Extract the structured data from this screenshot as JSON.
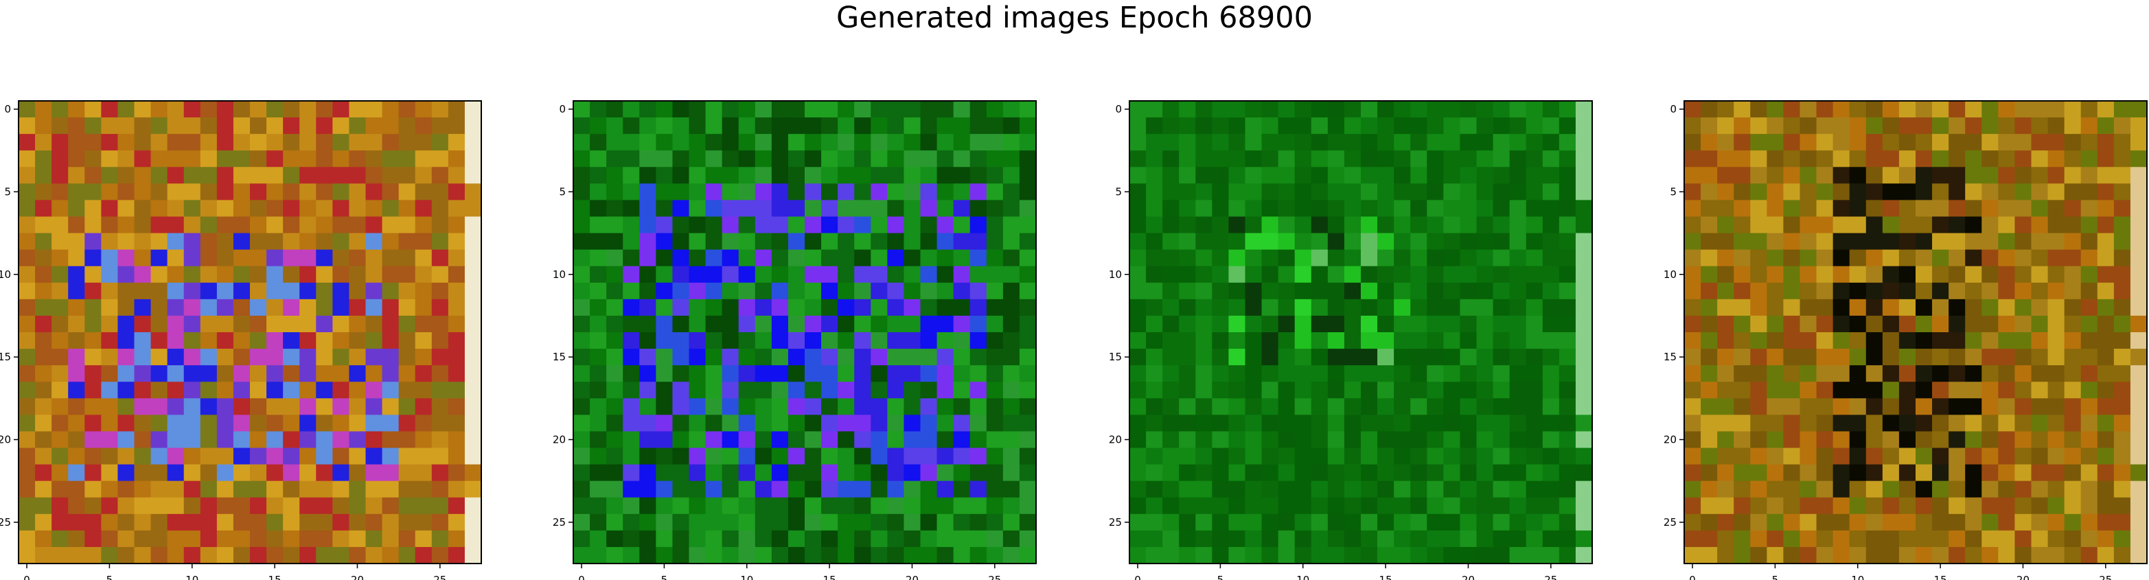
{
  "figure": {
    "title": "Generated images Epoch 68900"
  },
  "chart_data": [
    {
      "type": "heatmap",
      "x_ticks": [
        0,
        5,
        10,
        15,
        20,
        25
      ],
      "y_ticks": [
        0,
        5,
        10,
        15,
        20,
        25
      ],
      "xlim": [
        -0.5,
        27.5
      ],
      "ylim": [
        27.5,
        -0.5
      ],
      "grid": "28x28 RGB image",
      "palette": [
        "#b87510",
        "#9a6a12",
        "#c48a18",
        "#7a7a18",
        "#d4a020",
        "#a85818",
        "#b82828"
      ],
      "feature_palette": [
        "#2020e0",
        "#6a3ad0",
        "#c040c0",
        "#6090e0"
      ],
      "feature_rows": [
        8,
        22
      ],
      "feature_cols": [
        3,
        22
      ],
      "edge_column": "#f0ead0"
    },
    {
      "type": "heatmap",
      "x_ticks": [
        0,
        5,
        10,
        15,
        20,
        25
      ],
      "y_ticks": [
        0,
        5,
        10,
        15,
        20,
        25
      ],
      "xlim": [
        -0.5,
        27.5
      ],
      "ylim": [
        27.5,
        -0.5
      ],
      "grid": "28x28 RGB image",
      "palette": [
        "#0a7a0a",
        "#15901a",
        "#0c6a10",
        "#1fa020",
        "#0a5a0a",
        "#2a9a30",
        "#064a06"
      ],
      "feature_palette": [
        "#1010f0",
        "#3020e0",
        "#5a40e8",
        "#7a30f0",
        "#2a50e0"
      ],
      "feature_rows": [
        5,
        23
      ],
      "feature_cols": [
        3,
        24
      ],
      "edge_column": null
    },
    {
      "type": "heatmap",
      "x_ticks": [
        0,
        5,
        10,
        15,
        20,
        25
      ],
      "y_ticks": [
        0,
        5,
        10,
        15,
        20,
        25
      ],
      "xlim": [
        -0.5,
        27.5
      ],
      "ylim": [
        27.5,
        -0.5
      ],
      "grid": "28x28 RGB image",
      "palette": [
        "#0a6a0a",
        "#0c7c10",
        "#128a14",
        "#076007",
        "#1a941c",
        "#0a700a",
        "#066206"
      ],
      "feature_palette": [
        "#20c020",
        "#0a3a0a",
        "#60c060",
        "#2ad02a"
      ],
      "feature_rows": [
        7,
        15
      ],
      "feature_cols": [
        6,
        16
      ],
      "edge_column": "#8ad08a"
    },
    {
      "type": "heatmap",
      "x_ticks": [
        0,
        5,
        10,
        15,
        20,
        25
      ],
      "y_ticks": [
        0,
        5,
        10,
        15,
        20,
        25
      ],
      "xlim": [
        -0.5,
        27.5
      ],
      "ylim": [
        27.5,
        -0.5
      ],
      "grid": "28x28 RGB image",
      "palette": [
        "#8a6a0a",
        "#b8720c",
        "#6a7a0a",
        "#c8a020",
        "#9a4a10",
        "#a8801a",
        "#7a5a08"
      ],
      "feature_palette": [
        "#1a1a0a",
        "#2a1a08",
        "#0a0a00"
      ],
      "feature_rows": [
        4,
        23
      ],
      "feature_cols": [
        9,
        17
      ],
      "edge_column": "#e0c890"
    }
  ]
}
